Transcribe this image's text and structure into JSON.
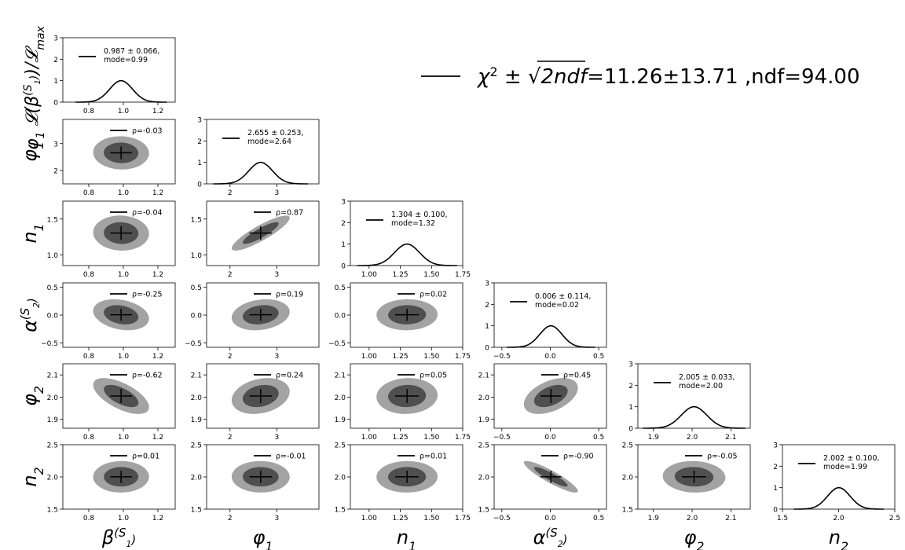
{
  "chart_data": {
    "type": "corner",
    "parameters": [
      {
        "key": "beta_S1",
        "label": "β(S1)",
        "label_main": "β",
        "label_sup": "(S",
        "label_subsup": "1",
        "label_close": ")",
        "range": [
          0.65,
          1.3
        ],
        "ticks": [
          0.8,
          1.0,
          1.2
        ],
        "tick_labels": [
          "0.8",
          "1.0",
          "1.2"
        ],
        "yticks": [],
        "ytick_labels": [],
        "mean": 0.987,
        "sigma": 0.066,
        "mode": 0.99,
        "legend": "0.987 ± 0.066,",
        "legend_mode": "mode=0.99"
      },
      {
        "key": "phi_1",
        "label": "φ1",
        "label_main": "φ",
        "label_sub": "1",
        "range": [
          1.5,
          3.9
        ],
        "ticks": [
          2,
          3
        ],
        "tick_labels": [
          "2",
          "3"
        ],
        "yticks": [
          2,
          3
        ],
        "ytick_labels": [
          "2",
          "3"
        ],
        "mean": 2.655,
        "sigma": 0.253,
        "mode": 2.64,
        "legend": "2.655 ± 0.253,",
        "legend_mode": "mode=2.64"
      },
      {
        "key": "n_1",
        "label": "n1",
        "label_main": "n",
        "label_sub": "1",
        "range": [
          0.85,
          1.75
        ],
        "ticks": [
          1.0,
          1.25,
          1.5,
          1.75
        ],
        "tick_labels": [
          "1.00",
          "1.25",
          "1.50",
          "1.75"
        ],
        "yticks": [
          1.0,
          1.5
        ],
        "ytick_labels": [
          "1.0",
          "1.5"
        ],
        "mean": 1.304,
        "sigma": 0.1,
        "mode": 1.32,
        "legend": "1.304 ± 0.100,",
        "legend_mode": "mode=1.32"
      },
      {
        "key": "alpha_S2",
        "label": "α(S2)",
        "label_main": "α",
        "label_sup": "(S",
        "label_subsup": "2",
        "label_close": ")",
        "range": [
          -0.58,
          0.58
        ],
        "ticks": [
          -0.5,
          0.0,
          0.5
        ],
        "tick_labels": [
          "−0.5",
          "0.0",
          "0.5"
        ],
        "yticks": [
          -0.5,
          0.0,
          0.5
        ],
        "ytick_labels": [
          "−0.5",
          "0.0",
          "0.5"
        ],
        "mean": 0.006,
        "sigma": 0.114,
        "mode": 0.02,
        "legend": "0.006 ± 0.114,",
        "legend_mode": "mode=0.02"
      },
      {
        "key": "phi_2",
        "label": "φ2",
        "label_main": "φ",
        "label_sub": "2",
        "range": [
          1.86,
          2.15
        ],
        "ticks": [
          1.9,
          2.0,
          2.1
        ],
        "tick_labels": [
          "1.9",
          "2.0",
          "2.1"
        ],
        "yticks": [
          1.9,
          2.0,
          2.1
        ],
        "ytick_labels": [
          "1.9",
          "2.0",
          "2.1"
        ],
        "mean": 2.005,
        "sigma": 0.033,
        "mode": 2.0,
        "legend": "2.005 ± 0.033,",
        "legend_mode": "mode=2.00"
      },
      {
        "key": "n_2",
        "label": "n2",
        "label_main": "n",
        "label_sub": "2",
        "range": [
          1.5,
          2.5
        ],
        "ticks": [
          1.5,
          2.0,
          2.5
        ],
        "tick_labels": [
          "1.5",
          "2.0",
          "2.5"
        ],
        "yticks": [
          1.5,
          2.0,
          2.5
        ],
        "ytick_labels": [
          "1.5",
          "2.0",
          "2.5"
        ],
        "mean": 2.002,
        "sigma": 0.1,
        "mode": 1.99,
        "legend": "2.002 ± 0.100,",
        "legend_mode": "mode=1.99"
      }
    ],
    "diag_ylim": [
      0,
      3
    ],
    "diag_yticks": [
      0,
      1,
      2,
      3
    ],
    "correlations": [
      {
        "row": 1,
        "col": 0,
        "rho": -0.03,
        "label": "ρ=-0.03"
      },
      {
        "row": 2,
        "col": 0,
        "rho": -0.04,
        "label": "ρ=-0.04"
      },
      {
        "row": 2,
        "col": 1,
        "rho": 0.87,
        "label": "ρ=0.87"
      },
      {
        "row": 3,
        "col": 0,
        "rho": -0.25,
        "label": "ρ=-0.25"
      },
      {
        "row": 3,
        "col": 1,
        "rho": 0.19,
        "label": "ρ=0.19"
      },
      {
        "row": 3,
        "col": 2,
        "rho": 0.02,
        "label": "ρ=0.02"
      },
      {
        "row": 4,
        "col": 0,
        "rho": -0.62,
        "label": "ρ=-0.62"
      },
      {
        "row": 4,
        "col": 1,
        "rho": 0.24,
        "label": "ρ=0.24"
      },
      {
        "row": 4,
        "col": 2,
        "rho": 0.05,
        "label": "ρ=0.05"
      },
      {
        "row": 4,
        "col": 3,
        "rho": 0.45,
        "label": "ρ=0.45"
      },
      {
        "row": 5,
        "col": 0,
        "rho": 0.01,
        "label": "ρ=0.01"
      },
      {
        "row": 5,
        "col": 1,
        "rho": -0.01,
        "label": "ρ=-0.01"
      },
      {
        "row": 5,
        "col": 2,
        "rho": 0.01,
        "label": "ρ=0.01"
      },
      {
        "row": 5,
        "col": 3,
        "rho": -0.9,
        "label": "ρ=-0.90"
      },
      {
        "row": 5,
        "col": 4,
        "rho": -0.05,
        "label": "ρ=-0.05"
      }
    ],
    "chi2": {
      "label": "χ² ± √2ndf=11.26±13.71 ,ndf=94.00",
      "chi": "χ",
      "sq": "2",
      "pm": " ± ",
      "ndf_radicand": "2ndf",
      "value": "=11.26±13.71 ,ndf=94.00"
    },
    "ylabel_top": {
      "phi": "φ",
      "sub": "1",
      "rest": "𝓛(β",
      "sup1": "(S",
      "sup2": "1",
      "sup3": ")",
      "tail": ")/𝓛",
      "tailsub": "max"
    },
    "colors": {
      "inner": "#4f4f4f",
      "outer": "#a3a3a3",
      "line": "#000000"
    }
  }
}
